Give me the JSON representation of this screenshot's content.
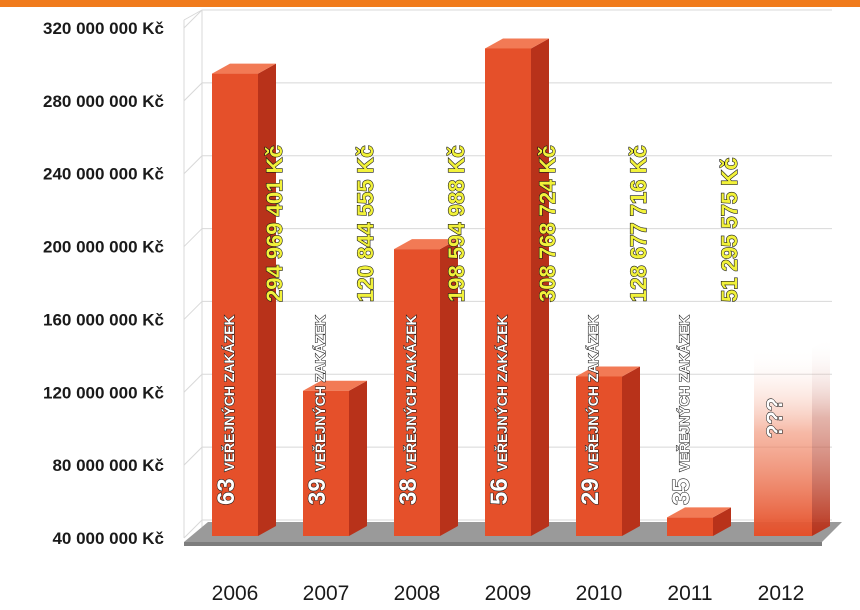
{
  "colors": {
    "accent_top": "#f07b1c",
    "bar_front": "#e5502a",
    "bar_side": "#b8321a",
    "bar_top": "#f27a55",
    "floor": "#9a9a9a",
    "grid": "#d8d8d8",
    "value_label": "#f2f23a"
  },
  "chart_data": {
    "type": "bar",
    "categories": [
      "2006",
      "2007",
      "2008",
      "2009",
      "2010",
      "2011",
      "2012"
    ],
    "values": [
      294969401,
      120844555,
      198594988,
      308768724,
      128677716,
      51295575,
      null
    ],
    "value_labels": [
      "294 969 401 Kč",
      "120 844 555 Kč",
      "198 594 988 Kč",
      "308 768 724 Kč",
      "128 677 716 Kč",
      "51 295 575 Kč",
      "???"
    ],
    "contract_counts": [
      "63",
      "39",
      "38",
      "56",
      "29",
      "35",
      ""
    ],
    "count_suffix": "VEŘEJNÝCH ZAKÁZEK",
    "yticks": [
      "40 000 000 Kč",
      "80 000 000 Kč",
      "120 000 000 Kč",
      "160 000 000 Kč",
      "200 000 000 Kč",
      "240 000 000 Kč",
      "280 000 000 Kč",
      "320 000 000 Kč"
    ],
    "ytick_values": [
      40000000,
      80000000,
      120000000,
      160000000,
      200000000,
      240000000,
      280000000,
      320000000
    ],
    "ylim": [
      40000000,
      320000000
    ],
    "grid": true,
    "legend": "none",
    "title": "",
    "xlabel": "",
    "ylabel": ""
  }
}
